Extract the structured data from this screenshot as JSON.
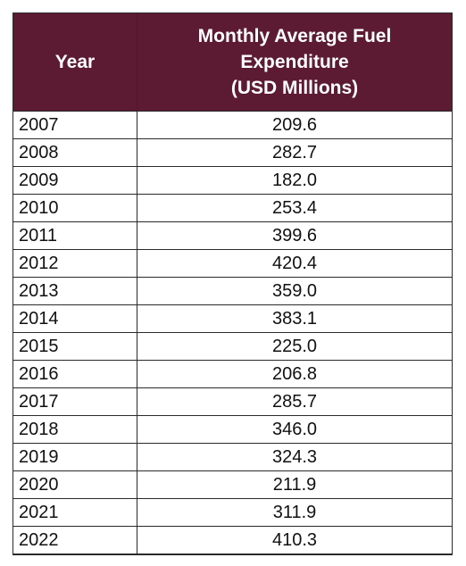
{
  "table": {
    "header": {
      "year": "Year",
      "value_lines": [
        "Monthly Average Fuel",
        "Expenditure",
        "(USD Millions)"
      ]
    },
    "rows": [
      {
        "year": "2007",
        "value": "209.6"
      },
      {
        "year": "2008",
        "value": "282.7"
      },
      {
        "year": "2009",
        "value": "182.0"
      },
      {
        "year": "2010",
        "value": "253.4"
      },
      {
        "year": "2011",
        "value": "399.6"
      },
      {
        "year": "2012",
        "value": "420.4"
      },
      {
        "year": "2013",
        "value": "359.0"
      },
      {
        "year": "2014",
        "value": "383.1"
      },
      {
        "year": "2015",
        "value": "225.0"
      },
      {
        "year": "2016",
        "value": "206.8"
      },
      {
        "year": "2017",
        "value": "285.7"
      },
      {
        "year": "2018",
        "value": "346.0"
      },
      {
        "year": "2019",
        "value": "324.3"
      },
      {
        "year": "2020",
        "value": "211.9"
      },
      {
        "year": "2021",
        "value": "311.9"
      },
      {
        "year": "2022",
        "value": "410.3"
      }
    ],
    "colors": {
      "header_bg": "#5c1a33",
      "header_text": "#ffffff",
      "border": "#2a2a2a"
    }
  }
}
